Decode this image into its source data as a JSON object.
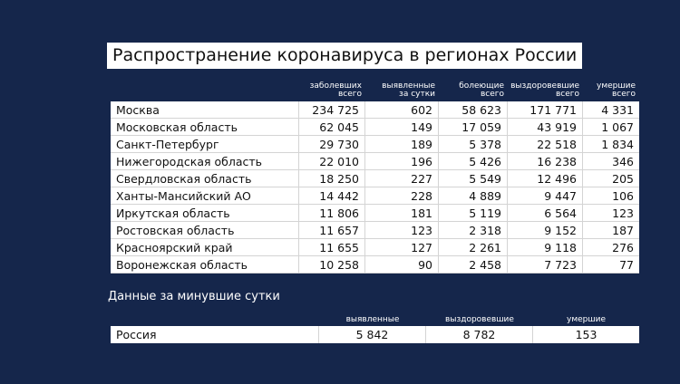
{
  "header": {
    "title": "Распространение коронавируса в регионах России"
  },
  "table": {
    "columns": [
      [
        "заболевших",
        "всего"
      ],
      [
        "выявленные",
        "за сутки"
      ],
      [
        "болеющие",
        "всего"
      ],
      [
        "выздоровевшие",
        "всего"
      ],
      [
        "умершие",
        "всего"
      ]
    ],
    "rows": [
      [
        "Москва",
        "234 725",
        "602",
        "58 623",
        "171 771",
        "4 331"
      ],
      [
        "Московская область",
        "62 045",
        "149",
        "17 059",
        "43 919",
        "1 067"
      ],
      [
        "Санкт-Петербург",
        "29 730",
        "189",
        "5 378",
        "22 518",
        "1 834"
      ],
      [
        "Нижегородская область",
        "22 010",
        "196",
        "5 426",
        "16 238",
        "346"
      ],
      [
        "Свердловская область",
        "18 250",
        "227",
        "5 549",
        "12 496",
        "205"
      ],
      [
        "Ханты-Мансийский АО",
        "14 442",
        "228",
        "4 889",
        "9 447",
        "106"
      ],
      [
        "Иркутская область",
        "11 806",
        "181",
        "5 119",
        "6 564",
        "123"
      ],
      [
        "Ростовская область",
        "11 657",
        "123",
        "2 318",
        "9 152",
        "187"
      ],
      [
        "Красноярский край",
        "11 655",
        "127",
        "2 261",
        "9 118",
        "276"
      ],
      [
        "Воронежская область",
        "10 258",
        "90",
        "2 458",
        "7 723",
        "77"
      ]
    ]
  },
  "summary": {
    "title": "Данные за минувшие сутки",
    "columns": [
      "выявленные",
      "выздоровевшие",
      "умершие"
    ],
    "rows": [
      [
        "Россия",
        "5 842",
        "8 782",
        "153"
      ]
    ]
  }
}
